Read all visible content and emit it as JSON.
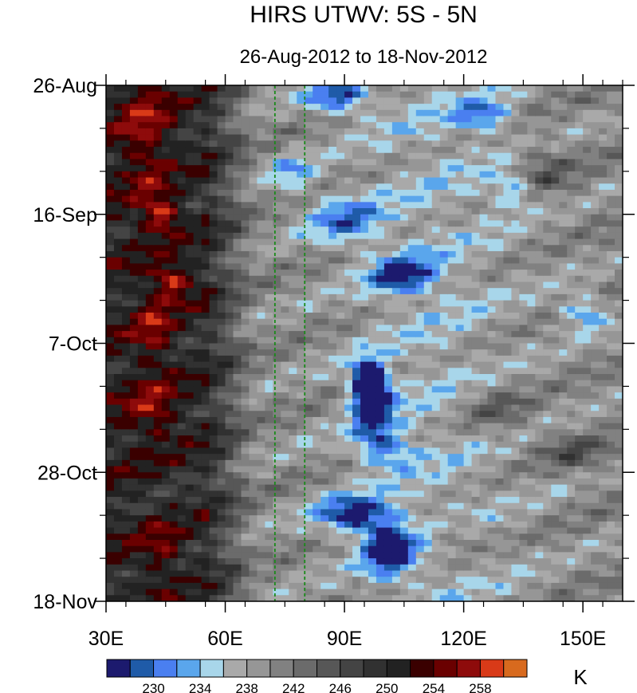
{
  "chart_data": {
    "type": "heatmap",
    "title": "HIRS UTWV: 5S - 5N",
    "subtitle": "26-Aug-2012 to 18-Nov-2012",
    "x_axis": {
      "range": [
        30,
        160
      ],
      "ticks": [
        {
          "value": 30,
          "label": "30E"
        },
        {
          "value": 60,
          "label": "60E"
        },
        {
          "value": 90,
          "label": "90E"
        },
        {
          "value": 120,
          "label": "120E"
        },
        {
          "value": 150,
          "label": "150E"
        }
      ]
    },
    "y_axis": {
      "range_days": [
        0,
        84
      ],
      "ticks": [
        {
          "day": 0,
          "label": "26-Aug"
        },
        {
          "day": 21,
          "label": "16-Sep"
        },
        {
          "day": 42,
          "label": "7-Oct"
        },
        {
          "day": 63,
          "label": "28-Oct"
        },
        {
          "day": 84,
          "label": "18-Nov"
        }
      ]
    },
    "reference_lines": [
      {
        "lon": 72.5,
        "color": "#1a8a1a",
        "style": "dashed"
      },
      {
        "lon": 80,
        "color": "#1a8a1a",
        "style": "dashed"
      }
    ],
    "colorbar": {
      "unit": "K",
      "levels": [
        228,
        230,
        232,
        234,
        236,
        238,
        240,
        242,
        244,
        246,
        248,
        250,
        252,
        254,
        256,
        258,
        260
      ],
      "colors": [
        "#1c1a6e",
        "#1f5ba8",
        "#4a7ff0",
        "#5aa6ec",
        "#a8d6ea",
        "#a9a9a9",
        "#969696",
        "#818181",
        "#6b6b6b",
        "#575757",
        "#444444",
        "#313131",
        "#222222",
        "#3a0000",
        "#6a0000",
        "#8e0b0b",
        "#d93a18",
        "#d86a1e"
      ],
      "labels": [
        {
          "value": 230,
          "label": "230"
        },
        {
          "value": 234,
          "label": "234"
        },
        {
          "value": 238,
          "label": "238"
        },
        {
          "value": 242,
          "label": "242"
        },
        {
          "value": 246,
          "label": "246"
        },
        {
          "value": 250,
          "label": "250"
        },
        {
          "value": 254,
          "label": "254"
        },
        {
          "value": 258,
          "label": "258"
        }
      ]
    },
    "features": [
      {
        "lon": 40,
        "day": 8,
        "dlon": 7,
        "dday": 10,
        "amp": 6
      },
      {
        "lon": 44,
        "day": 21,
        "dlon": 5,
        "dday": 3,
        "amp": 9
      },
      {
        "lon": 47,
        "day": 32,
        "dlon": 5,
        "dday": 3,
        "amp": 9
      },
      {
        "lon": 42,
        "day": 40,
        "dlon": 5,
        "dday": 6,
        "amp": 6
      },
      {
        "lon": 42,
        "day": 53,
        "dlon": 7,
        "dday": 5,
        "amp": 6
      },
      {
        "lon": 44,
        "day": 76,
        "dlon": 5,
        "dday": 5,
        "amp": 5
      },
      {
        "lon": 88,
        "day": 2,
        "dlon": 8,
        "dday": 2.5,
        "amp": -11
      },
      {
        "lon": 77,
        "day": 14,
        "dlon": 6,
        "dday": 3,
        "amp": -6
      },
      {
        "lon": 90,
        "day": 22,
        "dlon": 10,
        "dday": 4,
        "amp": -8
      },
      {
        "lon": 105,
        "day": 31,
        "dlon": 8,
        "dday": 3,
        "amp": -11
      },
      {
        "lon": 96,
        "day": 48,
        "dlon": 4,
        "dday": 3,
        "amp": -16
      },
      {
        "lon": 97,
        "day": 52,
        "dlon": 5,
        "dday": 5,
        "amp": -14
      },
      {
        "lon": 100,
        "day": 59,
        "dlon": 7,
        "dday": 3,
        "amp": -8
      },
      {
        "lon": 93,
        "day": 70,
        "dlon": 10,
        "dday": 3,
        "amp": -13
      },
      {
        "lon": 101,
        "day": 76,
        "dlon": 6,
        "dday": 4,
        "amp": -13
      },
      {
        "lon": 125,
        "day": 5,
        "dlon": 7,
        "dday": 2.5,
        "amp": -8
      },
      {
        "lon": 132,
        "day": 17,
        "dlon": 6,
        "dday": 3,
        "amp": -7
      },
      {
        "lon": 150,
        "day": 37,
        "dlon": 6,
        "dday": 3,
        "amp": -8
      },
      {
        "lon": 140,
        "day": 14,
        "dlon": 8,
        "dday": 4,
        "amp": 5
      },
      {
        "lon": 128,
        "day": 53,
        "dlon": 9,
        "dday": 4,
        "amp": 5
      },
      {
        "lon": 148,
        "day": 60,
        "dlon": 8,
        "dday": 3,
        "amp": 5
      },
      {
        "lon": 118,
        "day": 73,
        "dlon": 6,
        "dday": 3,
        "amp": 4
      }
    ]
  }
}
